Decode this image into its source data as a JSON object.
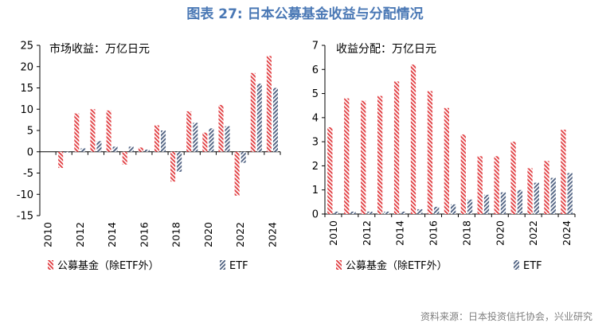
{
  "figure": {
    "title": "图表 27: 日本公募基金收益与分配情况",
    "source": "资料来源：日本投资信托协会，兴业研究",
    "colors": {
      "fund": "#e03a3e",
      "etf": "#4a5d7e",
      "title": "#4a78b5",
      "source": "#7f7f7f"
    }
  },
  "chart_data": [
    {
      "type": "bar",
      "title": "市场收益：万亿日元",
      "categories": [
        "2010",
        "2011",
        "2012",
        "2013",
        "2014",
        "2015",
        "2016",
        "2017",
        "2018",
        "2019",
        "2020",
        "2021",
        "2022",
        "2023",
        "2024"
      ],
      "tick_labels": [
        "2010",
        "2012",
        "2014",
        "2016",
        "2018",
        "2020",
        "2022",
        "2024"
      ],
      "series": [
        {
          "name": "公募基金（除ETF外）",
          "pattern": "hatch-red",
          "values": [
            0,
            -3.8,
            9,
            10,
            9.7,
            -3,
            1,
            6.2,
            -7,
            9.5,
            4.5,
            11,
            -10.3,
            18.5,
            22.5
          ]
        },
        {
          "name": "ETF",
          "pattern": "hatch-blue",
          "values": [
            0,
            -0.2,
            0.8,
            2.5,
            1.2,
            1.2,
            0.5,
            5,
            -4.7,
            6.8,
            5.5,
            6,
            -2.6,
            16,
            15
          ]
        }
      ],
      "ylim": [
        -15,
        25
      ],
      "yticks": [
        -15,
        -10,
        -5,
        0,
        5,
        10,
        15,
        20,
        25
      ],
      "xlabel": "",
      "ylabel": "",
      "legend_position": "bottom"
    },
    {
      "type": "bar",
      "title": "收益分配：万亿日元",
      "categories": [
        "2010",
        "2011",
        "2012",
        "2013",
        "2014",
        "2015",
        "2016",
        "2017",
        "2018",
        "2019",
        "2020",
        "2021",
        "2022",
        "2023",
        "2024"
      ],
      "tick_labels": [
        "2010",
        "2012",
        "2014",
        "2016",
        "2018",
        "2020",
        "2022",
        "2024"
      ],
      "series": [
        {
          "name": "公募基金（除ETF外）",
          "pattern": "hatch-red",
          "values": [
            3.6,
            4.8,
            4.7,
            4.9,
            5.5,
            6.2,
            5.1,
            4.4,
            3.3,
            2.4,
            2.4,
            3.0,
            1.9,
            2.2,
            3.5
          ]
        },
        {
          "name": "ETF",
          "pattern": "hatch-blue",
          "values": [
            0.1,
            0.1,
            0.1,
            0.1,
            0.1,
            0.2,
            0.3,
            0.4,
            0.6,
            0.8,
            0.9,
            1.0,
            1.3,
            1.5,
            1.7
          ]
        }
      ],
      "ylim": [
        0,
        7
      ],
      "yticks": [
        0,
        1,
        2,
        3,
        4,
        5,
        6,
        7
      ],
      "xlabel": "",
      "ylabel": "",
      "legend_position": "bottom"
    }
  ]
}
